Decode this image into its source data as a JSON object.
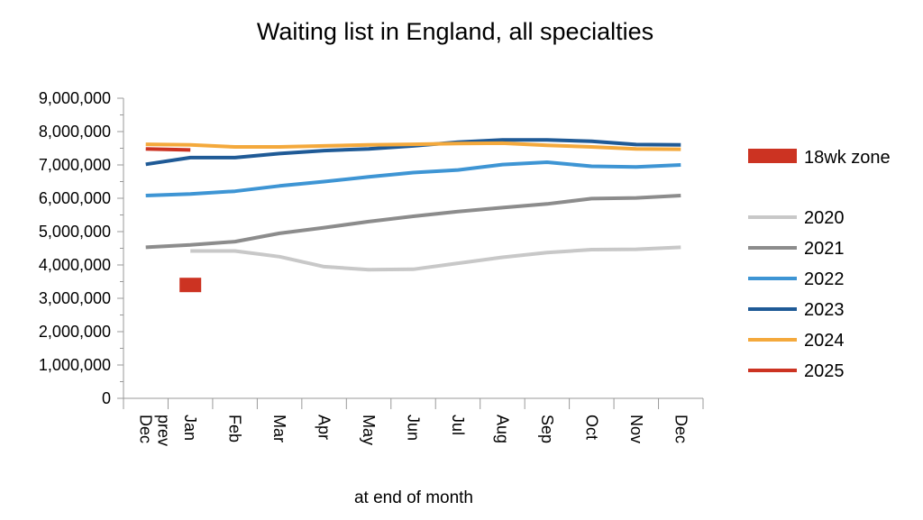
{
  "chart_data": {
    "type": "line",
    "title": "Waiting list in England, all specialties",
    "xlabel": "at end of month",
    "ylabel": "",
    "categories": [
      "Dec prev",
      "Jan",
      "Feb",
      "Mar",
      "Apr",
      "May",
      "Jun",
      "Jul",
      "Aug",
      "Sep",
      "Oct",
      "Nov",
      "Dec"
    ],
    "ylim": [
      0,
      9000000
    ],
    "yticks": [
      "0",
      "1,000,000",
      "2,000,000",
      "3,000,000",
      "4,000,000",
      "5,000,000",
      "6,000,000",
      "7,000,000",
      "8,000,000",
      "9,000,000"
    ],
    "grid": false,
    "legend": "right",
    "series": [
      {
        "name": "2020",
        "color": "#c8c8c8",
        "values": [
          null,
          4420000,
          4420000,
          4250000,
          3950000,
          3860000,
          3870000,
          4050000,
          4230000,
          4370000,
          4460000,
          4470000,
          4530000
        ]
      },
      {
        "name": "2021",
        "color": "#8c8c8c",
        "values": [
          4530000,
          4600000,
          4700000,
          4950000,
          5120000,
          5300000,
          5460000,
          5600000,
          5720000,
          5830000,
          5990000,
          6010000,
          6080000
        ]
      },
      {
        "name": "2022",
        "color": "#3e95d4",
        "values": [
          6080000,
          6130000,
          6210000,
          6370000,
          6500000,
          6640000,
          6770000,
          6850000,
          7010000,
          7080000,
          6960000,
          6940000,
          7000000
        ]
      },
      {
        "name": "2023",
        "color": "#1f5a96",
        "values": [
          7020000,
          7220000,
          7220000,
          7340000,
          7430000,
          7480000,
          7570000,
          7680000,
          7750000,
          7750000,
          7710000,
          7610000,
          7600000
        ]
      },
      {
        "name": "2024",
        "color": "#f4a93c",
        "values": [
          7620000,
          7600000,
          7540000,
          7540000,
          7570000,
          7600000,
          7620000,
          7640000,
          7650000,
          7590000,
          7540000,
          7480000,
          7470000
        ]
      },
      {
        "name": "2025",
        "color": "#cc3322",
        "values": [
          7480000,
          7450000,
          null,
          null,
          null,
          null,
          null,
          null,
          null,
          null,
          null,
          null,
          null
        ]
      }
    ],
    "markers": [
      {
        "name": "18wk zone",
        "color": "#cc3322",
        "x": "Jan",
        "y": 3400000
      }
    ]
  }
}
